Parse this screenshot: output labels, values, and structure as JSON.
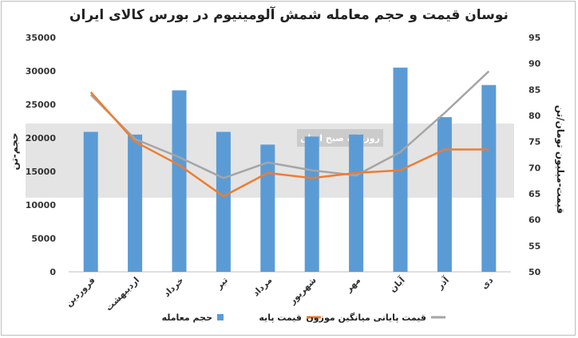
{
  "chart_data": {
    "type": "bar",
    "title": "نوسان قیمت و حجم معامله شمش آلومینیوم در بورس کالای ایران",
    "ylabel_left": "حجم-تن",
    "ylabel_right": "قیمت-میلیون تومان/تن",
    "categories": [
      "فروردین",
      "اردیبهشت",
      "خرداد",
      "تیر",
      "مرداد",
      "شهریور",
      "مهر",
      "آبان",
      "آذر",
      "دی"
    ],
    "ylim_left": [
      0,
      35000
    ],
    "yticks_left": [
      "35000",
      "30000",
      "25000",
      "20000",
      "15000",
      "10000",
      "5000",
      "0"
    ],
    "ylim_right": [
      50,
      95
    ],
    "yticks_right": [
      "95",
      "90",
      "85",
      "80",
      "75",
      "70",
      "65",
      "60",
      "55",
      "50"
    ],
    "grid": false,
    "legend_position": "bottom",
    "series": [
      {
        "name": "حجم معامله",
        "type": "bar",
        "axis": "left",
        "color": "#5b9bd5",
        "values": [
          20900,
          20500,
          27100,
          20900,
          19000,
          20200,
          20500,
          30500,
          23100,
          27900
        ]
      },
      {
        "name": "قیمت پایه",
        "type": "line",
        "axis": "right",
        "color": "#ed7d31",
        "values": [
          84.5,
          75,
          70.5,
          64.5,
          69,
          68,
          69,
          69.5,
          73.5,
          73.5
        ]
      },
      {
        "name": "قیمت پایانی میانگین موزون",
        "type": "line",
        "axis": "right",
        "color": "#a5a5a5",
        "values": [
          84,
          75.5,
          72,
          68,
          71,
          69.5,
          68.5,
          73,
          80.5,
          88.5
        ]
      }
    ],
    "watermark": "روزنامه صبح ایران"
  }
}
